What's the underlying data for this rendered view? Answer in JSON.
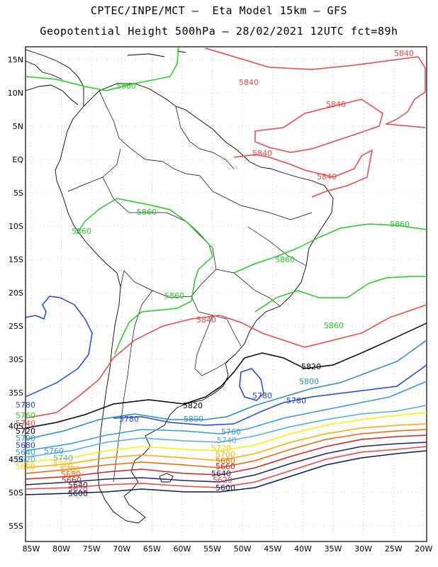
{
  "header": {
    "line1": "CPTEC/INPE/MCT –  Eta Model 15km – GFS",
    "line2": "Geopotential Height 500hPa – 28/02/2021 12UTC fct=89h"
  },
  "axes": {
    "lat_labels": [
      "15N",
      "10N",
      "5N",
      "EQ",
      "5S",
      "10S",
      "15S",
      "20S",
      "25S",
      "30S",
      "35S",
      "40S",
      "45S",
      "50S",
      "55S"
    ],
    "lon_labels": [
      "85W",
      "80W",
      "75W",
      "70W",
      "65W",
      "60W",
      "55W",
      "50W",
      "45W",
      "40W",
      "35W",
      "30W",
      "25W",
      "20W"
    ]
  },
  "colors": {
    "c5860": "#22cc22",
    "c5840": "#ee4444",
    "c5820": "#000000",
    "c5800": "#2a8fb0",
    "c5780": "#2244dd",
    "c5760": "#3399dd",
    "c5740": "#55aadd",
    "c5720": "#ffee00",
    "c5700": "#ffaa00",
    "c5680": "#ee6600",
    "c5660": "#cc2222",
    "c5640": "#222266",
    "c5600": "#0b1a5e"
  },
  "chart_data": {
    "type": "contour-map",
    "variable": "Geopotential Height 500hPa",
    "units": "m",
    "region": "South America",
    "lat_range": [
      -58,
      16
    ],
    "lon_range": [
      -86,
      -20
    ],
    "contour_levels": [
      5860,
      5840,
      5820,
      5800,
      5780,
      5760,
      5740,
      5720,
      5700,
      5680,
      5660,
      5640,
      5620,
      5600
    ],
    "labels_visible": [
      "5840",
      "5860",
      "5840",
      "5840",
      "5840",
      "5860",
      "5860",
      "5860",
      "5860",
      "5860",
      "5860",
      "5840",
      "5840",
      "5820",
      "5800",
      "5780",
      "5780",
      "5820",
      "5780",
      "5800",
      "5760",
      "5740",
      "5720",
      "5700",
      "5680",
      "5660",
      "5640",
      "5620",
      "5600",
      "5760",
      "5740",
      "5720",
      "5700",
      "5680",
      "5660",
      "5640",
      "5620",
      "5600",
      "5780",
      "5760",
      "5740",
      "5720",
      "5700",
      "5680",
      "5640",
      "5620",
      "5600"
    ]
  }
}
